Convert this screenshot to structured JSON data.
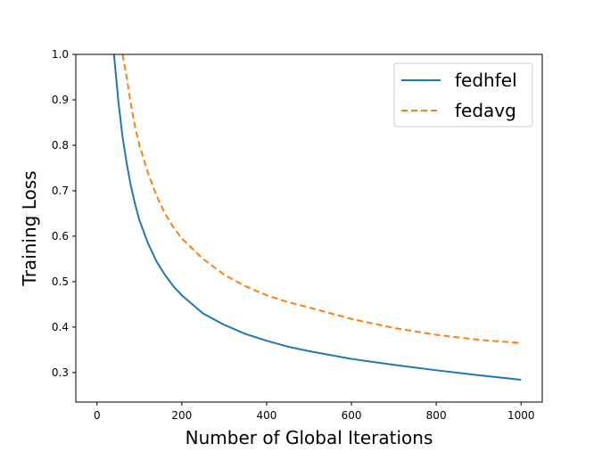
{
  "chart_data": {
    "type": "line",
    "xlabel": "Number of Global Iterations",
    "ylabel": "Training Loss",
    "xlim": [
      -50,
      1050
    ],
    "ylim": [
      0.235,
      1.0
    ],
    "xticks": [
      0,
      200,
      400,
      600,
      800,
      1000
    ],
    "yticks": [
      0.3,
      0.4,
      0.5,
      0.6,
      0.7,
      0.8,
      0.9,
      1.0
    ],
    "xtick_labels": [
      "0",
      "200",
      "400",
      "600",
      "800",
      "1000"
    ],
    "ytick_labels": [
      "0.3",
      "0.4",
      "0.5",
      "0.6",
      "0.7",
      "0.8",
      "0.9",
      "1.0"
    ],
    "grid": false,
    "legend_position": "top-right",
    "series": [
      {
        "name": "fedhfel",
        "color": "#1f77b4",
        "style": "solid",
        "x": [
          40,
          50,
          60,
          70,
          80,
          90,
          100,
          120,
          140,
          160,
          180,
          200,
          250,
          300,
          350,
          400,
          450,
          500,
          600,
          700,
          800,
          900,
          1000
        ],
        "y": [
          1.0,
          0.9,
          0.82,
          0.76,
          0.71,
          0.67,
          0.635,
          0.585,
          0.545,
          0.515,
          0.49,
          0.47,
          0.43,
          0.405,
          0.385,
          0.37,
          0.357,
          0.347,
          0.33,
          0.317,
          0.305,
          0.294,
          0.284
        ]
      },
      {
        "name": "fedavg",
        "color": "#ff7f0e",
        "style": "dashed",
        "x": [
          60,
          70,
          80,
          90,
          100,
          120,
          140,
          160,
          180,
          200,
          250,
          300,
          350,
          400,
          450,
          500,
          600,
          700,
          800,
          900,
          1000
        ],
        "y": [
          1.0,
          0.95,
          0.89,
          0.84,
          0.8,
          0.74,
          0.69,
          0.65,
          0.62,
          0.595,
          0.55,
          0.515,
          0.49,
          0.47,
          0.455,
          0.443,
          0.418,
          0.398,
          0.383,
          0.372,
          0.365
        ]
      }
    ]
  }
}
